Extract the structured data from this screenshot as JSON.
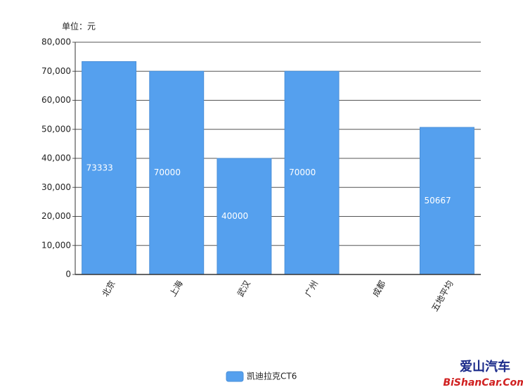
{
  "chart_data": {
    "type": "bar",
    "unit_label": "单位：元",
    "categories": [
      "北京",
      "上海",
      "武汉",
      "广州",
      "成都",
      "五地平均"
    ],
    "series": [
      {
        "name": "凯迪拉克CT6",
        "color": "#55a0ee",
        "values": [
          73333,
          70000,
          40000,
          70000,
          0,
          50667
        ]
      }
    ],
    "ylim": [
      0,
      80000
    ],
    "yticks": [
      0,
      {
        "value": 10000,
        "label": "10,000"
      },
      {
        "value": 20000,
        "label": "20,000"
      },
      {
        "value": 30000,
        "label": "30,000"
      },
      {
        "value": 40000,
        "label": "40,000"
      },
      {
        "value": 50000,
        "label": "50,000"
      },
      {
        "value": 60000,
        "label": "60,000"
      },
      {
        "value": 70000,
        "label": "70,000"
      },
      {
        "value": 80000,
        "label": "80,000"
      }
    ],
    "grid": true,
    "legend": "bottom",
    "watermark": [
      "爱山汽车",
      "BiShanCar.Com"
    ]
  }
}
